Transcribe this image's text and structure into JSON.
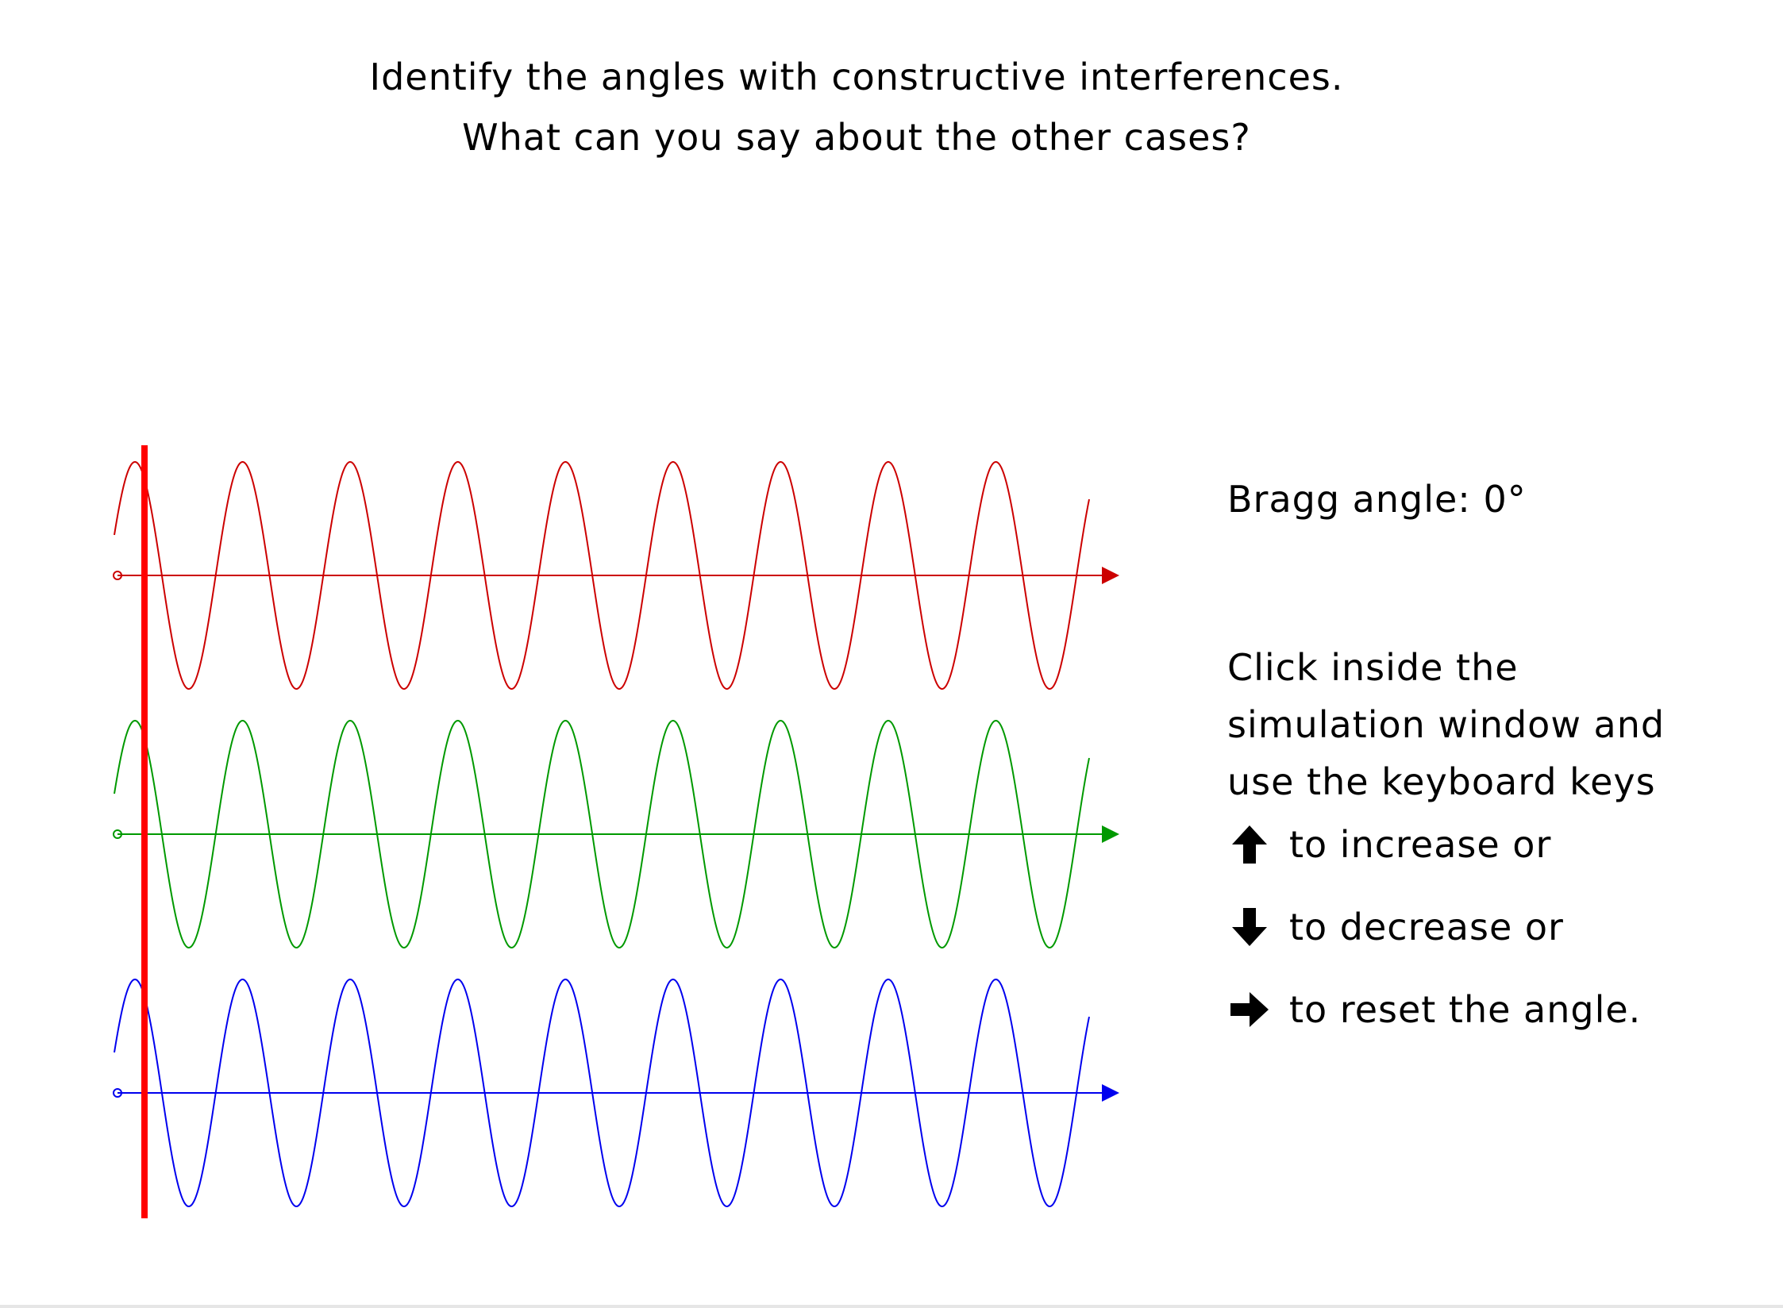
{
  "prompt": {
    "line1": "Identify the angles with constructive interferences.",
    "line2": "What can you say about the other cases?"
  },
  "angle": {
    "label": "Bragg angle:",
    "value": "0°",
    "degrees": 0
  },
  "instructions": {
    "line1": "Click inside the",
    "line2": "simulation window and",
    "line3": "use the keyboard keys",
    "keys": [
      {
        "icon": "arrow-up-icon",
        "text": "to increase or"
      },
      {
        "icon": "arrow-down-icon",
        "text": "to decrease or"
      },
      {
        "icon": "arrow-right-icon",
        "text": "to reset the angle."
      }
    ]
  },
  "colors": {
    "wave_top": "#cc0000",
    "wave_middle": "#009900",
    "wave_bottom": "#0000ee",
    "marker": "#ff0000"
  },
  "waves": [
    {
      "color_key": "wave_top",
      "cycles": 9,
      "phase_deg": 0
    },
    {
      "color_key": "wave_middle",
      "cycles": 9,
      "phase_deg": 0
    },
    {
      "color_key": "wave_bottom",
      "cycles": 9,
      "phase_deg": 0
    }
  ]
}
